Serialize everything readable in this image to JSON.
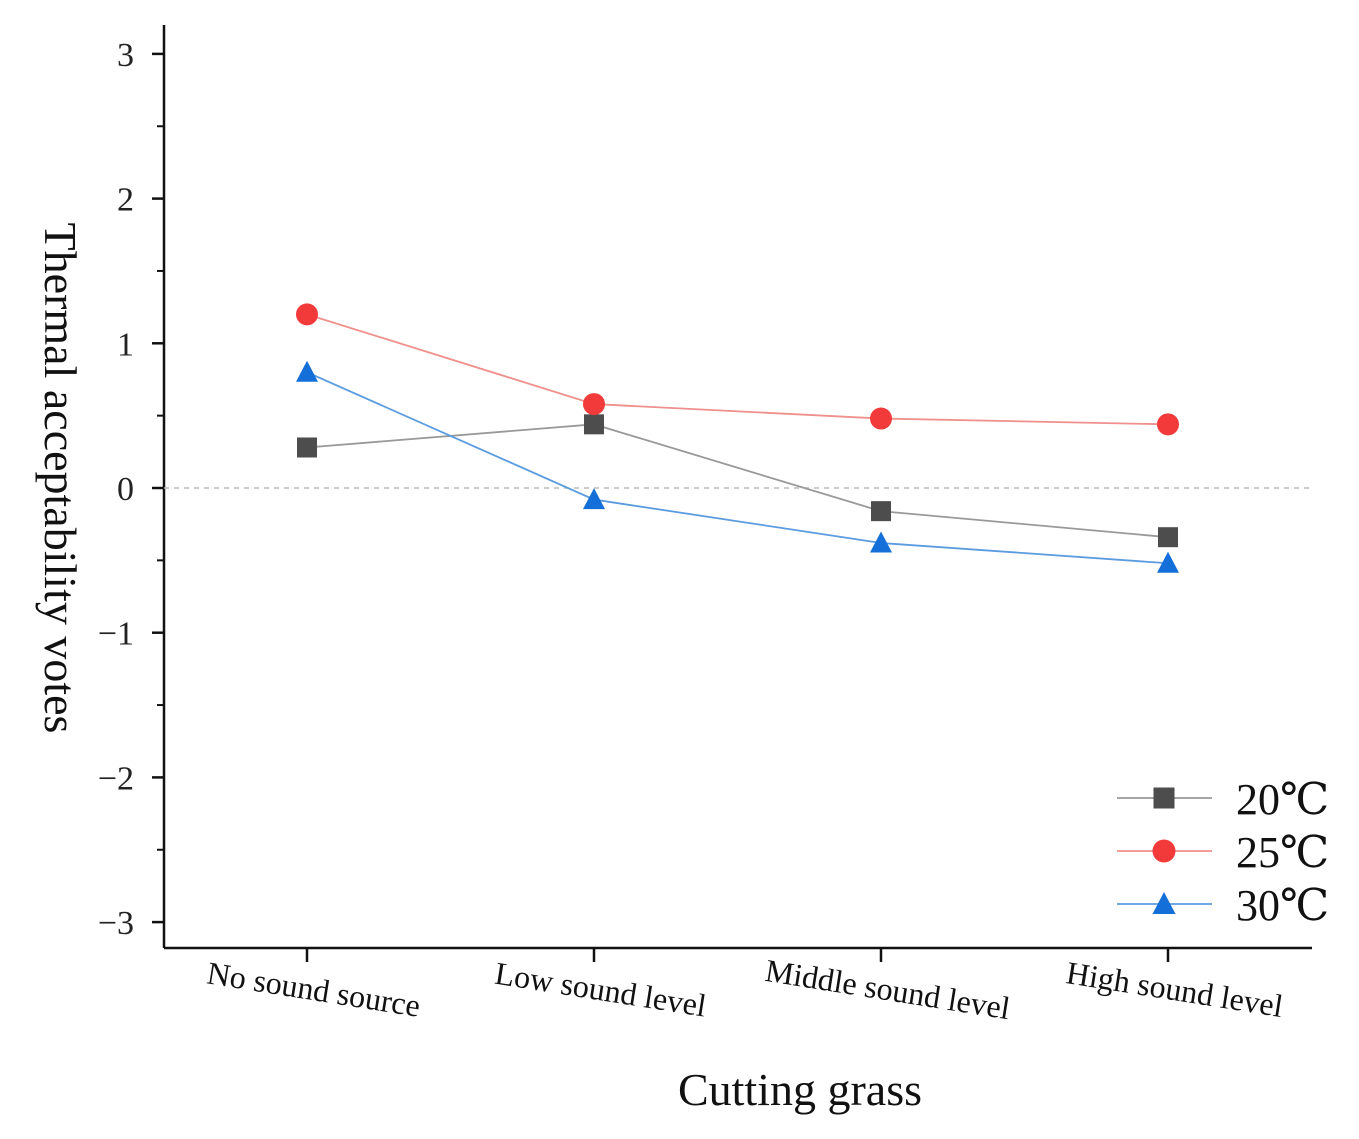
{
  "chart_data": {
    "type": "line",
    "xlabel": "Cutting grass",
    "ylabel": "Thermal acceptability votes",
    "categories": [
      "No sound source",
      "Low sound level",
      "Middle sound level",
      "High sound level"
    ],
    "ylim": [
      -3.2,
      3.2
    ],
    "yticks": [
      3,
      2,
      1,
      0,
      -1,
      -2,
      -3
    ],
    "ytick_labels": [
      "3",
      "2",
      "1",
      "0",
      "−1",
      "−2",
      "−3"
    ],
    "reference_line": 0,
    "grid": false,
    "legend_position": "bottom-right",
    "series": [
      {
        "name": "20℃",
        "marker": "square",
        "color": "#4d4d4d",
        "line_color": "#999999",
        "values": [
          0.28,
          0.44,
          -0.16,
          -0.34
        ]
      },
      {
        "name": "25℃",
        "marker": "circle",
        "color": "#f23a3a",
        "line_color": "#f0908c",
        "values": [
          1.2,
          0.58,
          0.48,
          0.44
        ]
      },
      {
        "name": "30℃",
        "marker": "triangle",
        "color": "#1470d8",
        "line_color": "#5b9be0",
        "values": [
          0.8,
          -0.08,
          -0.38,
          -0.52
        ]
      }
    ]
  }
}
